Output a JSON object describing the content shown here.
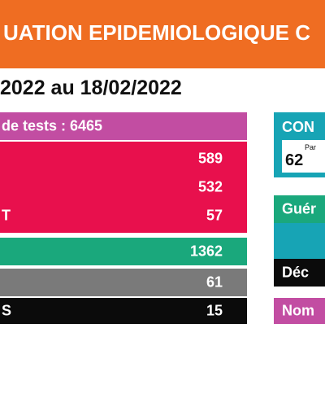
{
  "header": {
    "title": "UATION EPIDEMIOLOGIQUE C"
  },
  "period": {
    "text": "2022 au 18/02/2022"
  },
  "tests": {
    "label": "de tests : 6465"
  },
  "rows": {
    "r1": {
      "label": "",
      "value": "589"
    },
    "r2": {
      "label": "",
      "value": "532"
    },
    "r3": {
      "label": "T",
      "value": "57"
    },
    "green": {
      "label": "",
      "value": "1362"
    },
    "grey": {
      "label": "",
      "value": "61"
    },
    "black": {
      "label": "S",
      "value": "15"
    }
  },
  "right": {
    "title": "CON",
    "small": "Par",
    "number": "62",
    "gueri": "Guér",
    "deces": "Déc",
    "nombre": "Nom"
  },
  "colors": {
    "orange": "#ef6d22",
    "magenta": "#c24da2",
    "red": "#e8104d",
    "green": "#1aa87c",
    "grey": "#7a7a7a",
    "black": "#0b0b0b",
    "teal": "#17a4b5"
  }
}
